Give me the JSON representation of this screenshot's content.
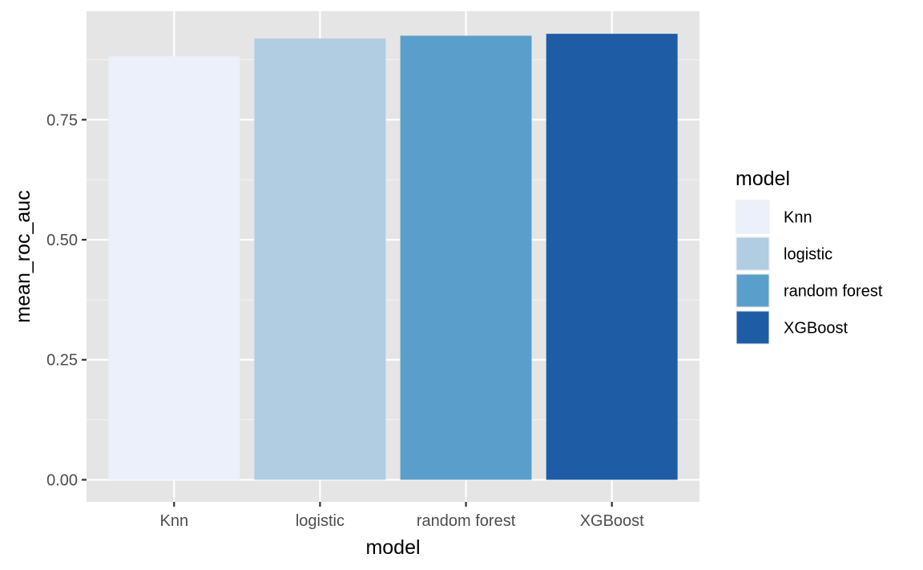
{
  "chart_data": {
    "type": "bar",
    "categories": [
      "Knn",
      "logistic",
      "random forest",
      "XGBoost"
    ],
    "values": [
      0.882,
      0.919,
      0.925,
      0.929
    ],
    "colors": [
      "#EBF0FB",
      "#B0CDE1",
      "#5A9FCB",
      "#1E5DA6"
    ],
    "xlabel": "model",
    "ylabel": "mean_roc_auc",
    "ylim": [
      -0.046,
      0.976
    ],
    "yticks": [
      0.0,
      0.25,
      0.5,
      0.75
    ],
    "ytick_labels": [
      "0.00",
      "0.25",
      "0.50",
      "0.75"
    ],
    "grid": true,
    "panel_background": "#E5E5E5",
    "legend": {
      "title": "model",
      "position": "right",
      "entries": [
        "Knn",
        "logistic",
        "random forest",
        "XGBoost"
      ]
    }
  }
}
